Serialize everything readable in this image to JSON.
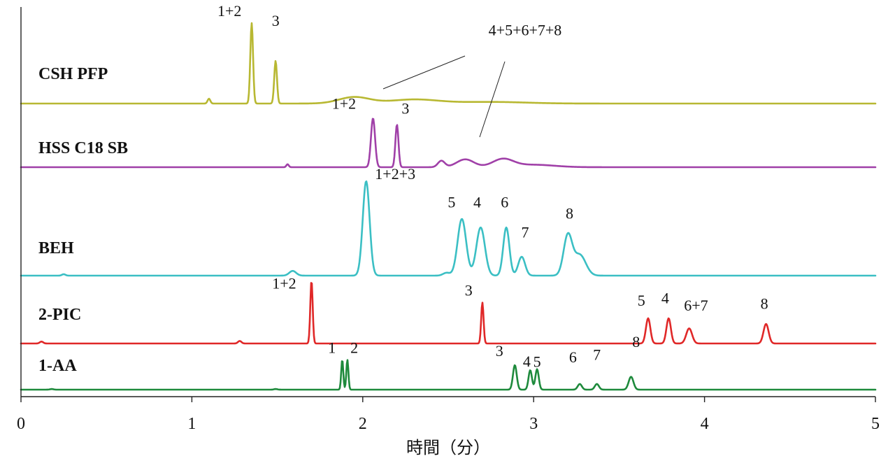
{
  "chart_data": {
    "type": "line",
    "xlabel": "時間（分）",
    "xlim": [
      0,
      5
    ],
    "xticks": [
      "0",
      "1",
      "2",
      "3",
      "4",
      "5"
    ],
    "series": [
      {
        "name": "CSH PFP",
        "color": "#b8b832",
        "baseline": 0.0,
        "peaks": [
          {
            "t": 1.1,
            "h": 0.06,
            "w": 0.008
          },
          {
            "t": 1.35,
            "h": 1.0,
            "w": 0.008
          },
          {
            "t": 1.49,
            "h": 0.53,
            "w": 0.008
          }
        ],
        "humps": [
          {
            "t": 1.95,
            "h": 0.08,
            "w": 0.09
          },
          {
            "t": 2.3,
            "h": 0.05,
            "w": 0.14
          },
          {
            "t": 2.75,
            "h": 0.02,
            "w": 0.2
          }
        ],
        "labels": [
          {
            "text": "1+2",
            "t": 1.22,
            "h": 1.0
          },
          {
            "text": "3",
            "t": 1.49,
            "h": 0.88
          },
          {
            "text": "4+5+6+7+8",
            "t": 2.95,
            "h": 0.76
          }
        ]
      },
      {
        "name": "HSS C18 SB",
        "color": "#a040a8",
        "baseline": 0.0,
        "peaks": [
          {
            "t": 1.56,
            "h": 0.06,
            "w": 0.007
          },
          {
            "t": 2.06,
            "h": 1.0,
            "w": 0.012
          },
          {
            "t": 2.2,
            "h": 0.87,
            "w": 0.009
          }
        ],
        "humps": [
          {
            "t": 2.46,
            "h": 0.13,
            "w": 0.02
          },
          {
            "t": 2.6,
            "h": 0.16,
            "w": 0.05
          },
          {
            "t": 2.82,
            "h": 0.16,
            "w": 0.06
          },
          {
            "t": 3.0,
            "h": 0.05,
            "w": 0.12
          }
        ],
        "labels": [
          {
            "text": "1+2",
            "t": 1.89,
            "h": 1.05
          },
          {
            "text": "3",
            "t": 2.25,
            "h": 0.95
          }
        ]
      },
      {
        "name": "BEH",
        "color": "#3bbfc4",
        "baseline": 0.0,
        "peaks": [
          {
            "t": 0.25,
            "h": 0.015,
            "w": 0.01
          },
          {
            "t": 1.59,
            "h": 0.05,
            "w": 0.02
          },
          {
            "t": 2.02,
            "h": 1.0,
            "w": 0.02
          },
          {
            "t": 2.49,
            "h": 0.03,
            "w": 0.02
          },
          {
            "t": 2.58,
            "h": 0.6,
            "w": 0.025
          },
          {
            "t": 2.69,
            "h": 0.51,
            "w": 0.025
          },
          {
            "t": 2.84,
            "h": 0.51,
            "w": 0.018
          },
          {
            "t": 2.93,
            "h": 0.2,
            "w": 0.02
          },
          {
            "t": 3.2,
            "h": 0.42,
            "w": 0.025
          },
          {
            "t": 3.27,
            "h": 0.22,
            "w": 0.035
          }
        ],
        "humps": [],
        "labels": [
          {
            "text": "1+2+3",
            "t": 2.19,
            "h": 0.95
          },
          {
            "text": "5",
            "t": 2.52,
            "h": 0.65
          },
          {
            "text": "4",
            "t": 2.67,
            "h": 0.65
          },
          {
            "text": "6",
            "t": 2.83,
            "h": 0.65
          },
          {
            "text": "7",
            "t": 2.95,
            "h": 0.33
          },
          {
            "text": "8",
            "t": 3.21,
            "h": 0.53
          }
        ]
      },
      {
        "name": "2-PIC",
        "color": "#e02828",
        "baseline": 0.0,
        "peaks": [
          {
            "t": 0.12,
            "h": 0.03,
            "w": 0.01
          },
          {
            "t": 1.28,
            "h": 0.04,
            "w": 0.01
          },
          {
            "t": 1.7,
            "h": 1.0,
            "w": 0.007
          },
          {
            "t": 2.7,
            "h": 0.65,
            "w": 0.007
          },
          {
            "t": 3.67,
            "h": 0.4,
            "w": 0.013
          },
          {
            "t": 3.79,
            "h": 0.4,
            "w": 0.013
          },
          {
            "t": 3.91,
            "h": 0.24,
            "w": 0.017
          },
          {
            "t": 4.36,
            "h": 0.31,
            "w": 0.015
          }
        ],
        "humps": [],
        "labels": [
          {
            "text": "1+2",
            "t": 1.54,
            "h": 0.76
          },
          {
            "text": "3",
            "t": 2.62,
            "h": 0.65
          },
          {
            "text": "5",
            "t": 3.63,
            "h": 0.49
          },
          {
            "text": "4",
            "t": 3.77,
            "h": 0.53
          },
          {
            "text": "6+7",
            "t": 3.95,
            "h": 0.41
          },
          {
            "text": "8",
            "t": 4.35,
            "h": 0.44
          }
        ]
      },
      {
        "name": "1-AA",
        "color": "#1e8a3c",
        "baseline": 0.0,
        "peaks": [
          {
            "t": 0.18,
            "h": 0.02,
            "w": 0.01
          },
          {
            "t": 1.49,
            "h": 0.02,
            "w": 0.01
          },
          {
            "t": 1.88,
            "h": 0.95,
            "w": 0.006
          },
          {
            "t": 1.91,
            "h": 0.95,
            "w": 0.006
          },
          {
            "t": 2.89,
            "h": 0.78,
            "w": 0.011
          },
          {
            "t": 2.98,
            "h": 0.62,
            "w": 0.01
          },
          {
            "t": 3.02,
            "h": 0.65,
            "w": 0.01
          },
          {
            "t": 3.27,
            "h": 0.18,
            "w": 0.012
          },
          {
            "t": 3.37,
            "h": 0.18,
            "w": 0.012
          },
          {
            "t": 3.57,
            "h": 0.41,
            "w": 0.014
          }
        ],
        "humps": [],
        "labels": [
          {
            "text": "1",
            "t": 1.82,
            "h": 0.95
          },
          {
            "text": "2",
            "t": 1.95,
            "h": 0.95
          },
          {
            "text": "3",
            "t": 2.8,
            "h": 0.85
          },
          {
            "text": "4",
            "t": 2.96,
            "h": 0.51
          },
          {
            "text": "5",
            "t": 3.02,
            "h": 0.5
          },
          {
            "text": "6",
            "t": 3.23,
            "h": 0.64
          },
          {
            "text": "7",
            "t": 3.37,
            "h": 0.72
          },
          {
            "text": "8",
            "t": 3.6,
            "h": 1.13
          }
        ]
      }
    ]
  }
}
